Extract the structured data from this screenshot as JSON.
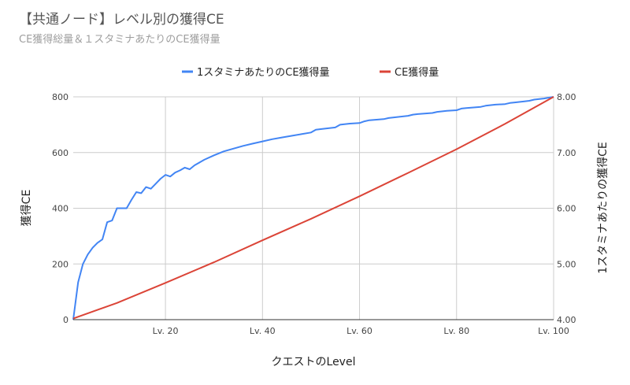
{
  "chart_data": {
    "type": "line",
    "title": "【共通ノード】レベル別の獲得CE",
    "subtitle": "CE獲得総量＆１スタミナあたりのCE獲得量",
    "xlabel": "クエストのLevel",
    "ylabel_left": "獲得CE",
    "ylabel_right": "1スタミナあたりの獲得CE",
    "xlim": [
      1,
      100
    ],
    "ylim_left": [
      0,
      800
    ],
    "ylim_right": [
      4,
      8
    ],
    "x_ticks": [
      20,
      40,
      60,
      80,
      100
    ],
    "x_tick_labels": [
      "Lv. 20",
      "Lv. 40",
      "Lv. 60",
      "Lv. 80",
      "Lv. 100"
    ],
    "y_left_ticks": [
      0,
      200,
      400,
      600,
      800
    ],
    "y_left_tick_labels": [
      "0",
      "200",
      "400",
      "600",
      "800"
    ],
    "y_right_ticks": [
      4,
      5,
      6,
      7,
      8
    ],
    "y_right_tick_labels": [
      "4.00",
      "5.00",
      "6.00",
      "7.00",
      "8.00"
    ],
    "grid": true,
    "legend_position": "top",
    "series": [
      {
        "name": "1スタミナあたりのCE獲得量",
        "axis": "right",
        "color": "#4285f4",
        "x": [
          1,
          2,
          3,
          4,
          5,
          6,
          7,
          8,
          9,
          10,
          11,
          12,
          13,
          14,
          15,
          16,
          17,
          18,
          19,
          20,
          21,
          22,
          23,
          24,
          25,
          26,
          28,
          30,
          32,
          34,
          36,
          38,
          40,
          42,
          44,
          46,
          48,
          50,
          51,
          52,
          55,
          56,
          58,
          60,
          61,
          62,
          65,
          66,
          68,
          70,
          71,
          72,
          75,
          76,
          78,
          80,
          81,
          82,
          85,
          86,
          88,
          90,
          91,
          92,
          94,
          95,
          96,
          98,
          100
        ],
        "values": [
          4.0,
          4.67,
          5.0,
          5.17,
          5.29,
          5.38,
          5.44,
          5.75,
          5.78,
          6.0,
          6.0,
          6.0,
          6.15,
          6.29,
          6.27,
          6.38,
          6.35,
          6.44,
          6.53,
          6.6,
          6.57,
          6.64,
          6.68,
          6.73,
          6.7,
          6.77,
          6.87,
          6.95,
          7.02,
          7.07,
          7.12,
          7.16,
          7.2,
          7.24,
          7.27,
          7.3,
          7.33,
          7.36,
          7.41,
          7.42,
          7.45,
          7.5,
          7.52,
          7.53,
          7.56,
          7.58,
          7.6,
          7.62,
          7.64,
          7.66,
          7.68,
          7.69,
          7.71,
          7.73,
          7.75,
          7.76,
          7.79,
          7.8,
          7.82,
          7.84,
          7.86,
          7.87,
          7.89,
          7.9,
          7.92,
          7.93,
          7.95,
          7.97,
          8.0
        ]
      },
      {
        "name": "CE獲得量",
        "axis": "left",
        "color": "#db4437",
        "x": [
          1,
          10,
          20,
          30,
          40,
          50,
          60,
          70,
          80,
          90,
          100
        ],
        "values": [
          4,
          60,
          132,
          206,
          285,
          362,
          443,
          527,
          612,
          703,
          800
        ]
      }
    ]
  }
}
